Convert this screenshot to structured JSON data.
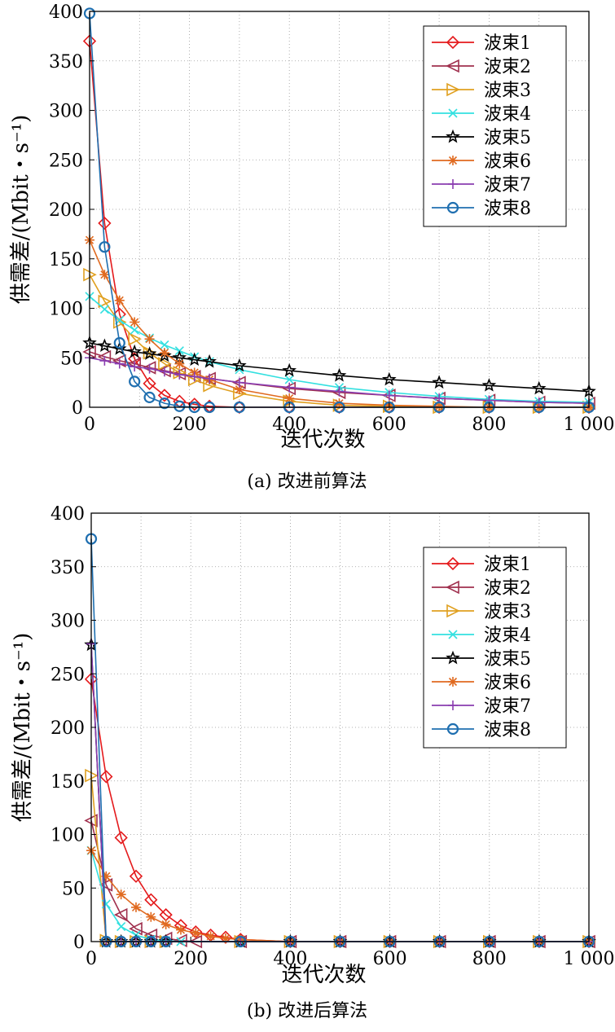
{
  "chart_data": [
    {
      "type": "line",
      "caption": "(a) 改进前算法",
      "xlabel": "迭代次数",
      "ylabel": "供需差/(Mbit・s⁻¹)",
      "xlim": [
        0,
        1000
      ],
      "ylim": [
        0,
        400
      ],
      "x_ticks": [
        "0",
        "200",
        "400",
        "600",
        "800",
        "1 000"
      ],
      "y_ticks": [
        "0",
        "50",
        "100",
        "150",
        "200",
        "250",
        "300",
        "350",
        "400"
      ],
      "grid": "dotted",
      "legend_position": "top-right",
      "series": [
        {
          "name": "波束1",
          "color": "#e41a1c",
          "marker": "diamond",
          "x": [
            0,
            30,
            60,
            90,
            120,
            150,
            180,
            210,
            240,
            300,
            400,
            500,
            600,
            700,
            800,
            900,
            1000
          ],
          "y": [
            370,
            186,
            94,
            49,
            24,
            12,
            6,
            3,
            1,
            0,
            0,
            0,
            0,
            0,
            0,
            0,
            0
          ]
        },
        {
          "name": "波束2",
          "color": "#a0304e",
          "marker": "triangle-left",
          "x": [
            0,
            30,
            60,
            90,
            120,
            150,
            180,
            210,
            240,
            300,
            400,
            500,
            600,
            700,
            800,
            900,
            1000
          ],
          "y": [
            56,
            51,
            47,
            44,
            40,
            37,
            34,
            31,
            29,
            25,
            19,
            15,
            12,
            9,
            7,
            5,
            4
          ]
        },
        {
          "name": "波束3",
          "color": "#e0a020",
          "marker": "triangle-right",
          "x": [
            0,
            30,
            60,
            90,
            120,
            150,
            180,
            210,
            240,
            300,
            400,
            500,
            600,
            700,
            800,
            900,
            1000
          ],
          "y": [
            134,
            107,
            86,
            69,
            55,
            44,
            35,
            28,
            22,
            14,
            6,
            2,
            1,
            0,
            0,
            0,
            0
          ]
        },
        {
          "name": "波束4",
          "color": "#33e0e0",
          "marker": "x",
          "x": [
            0,
            30,
            60,
            90,
            120,
            150,
            180,
            210,
            240,
            300,
            400,
            500,
            600,
            700,
            800,
            900,
            1000
          ],
          "y": [
            112,
            99,
            88,
            78,
            70,
            63,
            57,
            51,
            46,
            38,
            28,
            20,
            15,
            11,
            8,
            6,
            5
          ]
        },
        {
          "name": "波束5",
          "color": "#000000",
          "marker": "star",
          "x": [
            0,
            30,
            60,
            90,
            120,
            150,
            180,
            210,
            240,
            300,
            400,
            500,
            600,
            700,
            800,
            900,
            1000
          ],
          "y": [
            65,
            62,
            59,
            56,
            54,
            52,
            50,
            48,
            46,
            42,
            37,
            32,
            28,
            25,
            22,
            19,
            16
          ]
        },
        {
          "name": "波束6",
          "color": "#e06a20",
          "marker": "asterisk",
          "x": [
            0,
            30,
            60,
            90,
            120,
            150,
            180,
            210,
            240,
            300,
            400,
            500,
            600,
            700,
            800,
            900,
            1000
          ],
          "y": [
            169,
            134,
            108,
            86,
            69,
            55,
            44,
            35,
            28,
            18,
            9,
            4,
            2,
            1,
            0,
            0,
            0
          ]
        },
        {
          "name": "波束7",
          "color": "#8a3db0",
          "marker": "plus",
          "x": [
            0,
            30,
            60,
            90,
            120,
            150,
            180,
            210,
            240,
            300,
            400,
            500,
            600,
            700,
            800,
            900,
            1000
          ],
          "y": [
            50,
            47,
            44,
            41,
            39,
            36,
            33,
            31,
            29,
            25,
            20,
            16,
            12,
            9,
            7,
            5,
            4
          ]
        },
        {
          "name": "波束8",
          "color": "#1f6fb0",
          "marker": "circle",
          "x": [
            0,
            30,
            60,
            90,
            120,
            150,
            180,
            210,
            240,
            300,
            400,
            500,
            600,
            700,
            800,
            900,
            1000
          ],
          "y": [
            398,
            162,
            65,
            26,
            10,
            4,
            1,
            0,
            0,
            0,
            0,
            0,
            0,
            0,
            0,
            0,
            0
          ]
        }
      ]
    },
    {
      "type": "line",
      "caption": "(b) 改进后算法",
      "xlabel": "迭代次数",
      "ylabel": "供需差/(Mbit・s⁻¹)",
      "xlim": [
        0,
        1000
      ],
      "ylim": [
        0,
        400
      ],
      "x_ticks": [
        "0",
        "200",
        "400",
        "600",
        "800",
        "1 000"
      ],
      "y_ticks": [
        "0",
        "50",
        "100",
        "150",
        "200",
        "250",
        "300",
        "350",
        "400"
      ],
      "grid": "dotted",
      "legend_position": "top-right",
      "series": [
        {
          "name": "波束1",
          "color": "#e41a1c",
          "marker": "diamond",
          "x": [
            0,
            30,
            60,
            90,
            120,
            150,
            180,
            210,
            240,
            270,
            300,
            400,
            500,
            600,
            700,
            800,
            900,
            1000
          ],
          "y": [
            245,
            154,
            97,
            61,
            39,
            25,
            15,
            9,
            6,
            4,
            2,
            0,
            0,
            0,
            0,
            0,
            0,
            0
          ]
        },
        {
          "name": "波束2",
          "color": "#a0304e",
          "marker": "triangle-left",
          "x": [
            0,
            30,
            60,
            90,
            120,
            150,
            180,
            210,
            300,
            400,
            500,
            600,
            700,
            800,
            900,
            1000
          ],
          "y": [
            113,
            53,
            25,
            12,
            6,
            3,
            1,
            0,
            0,
            0,
            0,
            0,
            0,
            0,
            0,
            0
          ]
        },
        {
          "name": "波束3",
          "color": "#e0a020",
          "marker": "triangle-right",
          "x": [
            0,
            30,
            60,
            90,
            120,
            150,
            300,
            400,
            500,
            600,
            700,
            800,
            900,
            1000
          ],
          "y": [
            155,
            1,
            0,
            0,
            0,
            0,
            0,
            0,
            0,
            0,
            0,
            0,
            0,
            0
          ]
        },
        {
          "name": "波束4",
          "color": "#33e0e0",
          "marker": "x",
          "x": [
            0,
            30,
            60,
            90,
            120,
            150,
            180,
            300,
            400,
            500,
            600,
            700,
            800,
            900,
            1000
          ],
          "y": [
            85,
            35,
            14,
            6,
            2,
            1,
            0,
            0,
            0,
            0,
            0,
            0,
            0,
            0,
            0
          ]
        },
        {
          "name": "波束5",
          "color": "#000000",
          "marker": "star",
          "x": [
            0,
            30,
            60,
            90,
            120,
            150,
            300,
            400,
            500,
            600,
            700,
            800,
            900,
            1000
          ],
          "y": [
            277,
            0,
            0,
            0,
            0,
            0,
            0,
            0,
            0,
            0,
            0,
            0,
            0,
            0
          ]
        },
        {
          "name": "波束6",
          "color": "#e06a20",
          "marker": "asterisk",
          "x": [
            0,
            30,
            60,
            90,
            120,
            150,
            180,
            210,
            240,
            270,
            300,
            400,
            500,
            600,
            700,
            800,
            900,
            1000
          ],
          "y": [
            85,
            61,
            44,
            32,
            23,
            16,
            11,
            8,
            5,
            3,
            2,
            0,
            0,
            0,
            0,
            0,
            0,
            0
          ]
        },
        {
          "name": "波束7",
          "color": "#8a3db0",
          "marker": "plus",
          "x": [
            0,
            30,
            60,
            90,
            120,
            150,
            300,
            400,
            500,
            600,
            700,
            800,
            900,
            1000
          ],
          "y": [
            278,
            0,
            0,
            0,
            0,
            0,
            0,
            0,
            0,
            0,
            0,
            0,
            0,
            0
          ]
        },
        {
          "name": "波束8",
          "color": "#1f6fb0",
          "marker": "circle",
          "x": [
            0,
            30,
            60,
            90,
            120,
            150,
            300,
            400,
            500,
            600,
            700,
            800,
            900,
            1000
          ],
          "y": [
            376,
            0,
            0,
            0,
            0,
            0,
            0,
            0,
            0,
            0,
            0,
            0,
            0,
            0
          ]
        }
      ]
    }
  ]
}
